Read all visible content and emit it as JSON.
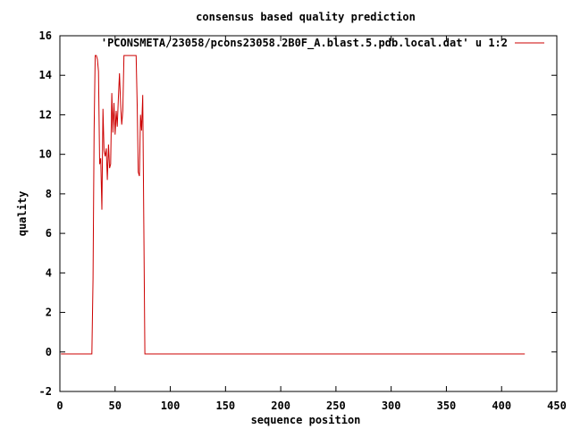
{
  "chart_data": {
    "type": "line",
    "title": "consensus based quality prediction",
    "xlabel": "sequence position",
    "ylabel": "quality",
    "xlim": [
      0,
      450
    ],
    "ylim": [
      -2,
      16
    ],
    "xticks": [
      0,
      50,
      100,
      150,
      200,
      250,
      300,
      350,
      400,
      450
    ],
    "yticks": [
      -2,
      0,
      2,
      4,
      6,
      8,
      10,
      12,
      14,
      16
    ],
    "grid": false,
    "legend_position": "top-right",
    "series": [
      {
        "name": "'PCONSMETA/23058/pcons23058.2B0F_A.blast.5.pdb.local.dat' u 1:2",
        "color": "#cc0000",
        "x": [
          1,
          29,
          30,
          31,
          32,
          33,
          34,
          35,
          36,
          37,
          38,
          39,
          40,
          41,
          42,
          43,
          44,
          45,
          46,
          47,
          48,
          49,
          50,
          51,
          52,
          53,
          54,
          55,
          56,
          57,
          58,
          59,
          60,
          61,
          62,
          63,
          64,
          65,
          66,
          67,
          68,
          69,
          70,
          71,
          72,
          73,
          74,
          75,
          76,
          77,
          78,
          79,
          80,
          100,
          200,
          300,
          400,
          421
        ],
        "y": [
          -0.1,
          -0.1,
          3.7,
          11.2,
          15,
          15,
          14.8,
          14.2,
          9.5,
          9.8,
          7.2,
          12.3,
          10.2,
          9.9,
          10.3,
          8.7,
          10.5,
          9.3,
          9.5,
          13.1,
          11.1,
          12.6,
          11.0,
          12.2,
          11.4,
          12.9,
          14.1,
          12.5,
          11.5,
          12.2,
          15,
          15,
          15,
          15,
          15,
          15,
          15,
          15,
          15,
          15,
          15,
          15,
          12.5,
          9.1,
          8.9,
          12.0,
          11.2,
          13.0,
          6.5,
          -0.1,
          -0.1,
          -0.1,
          -0.1,
          -0.1,
          -0.1,
          -0.1,
          -0.1,
          -0.1
        ]
      }
    ]
  }
}
